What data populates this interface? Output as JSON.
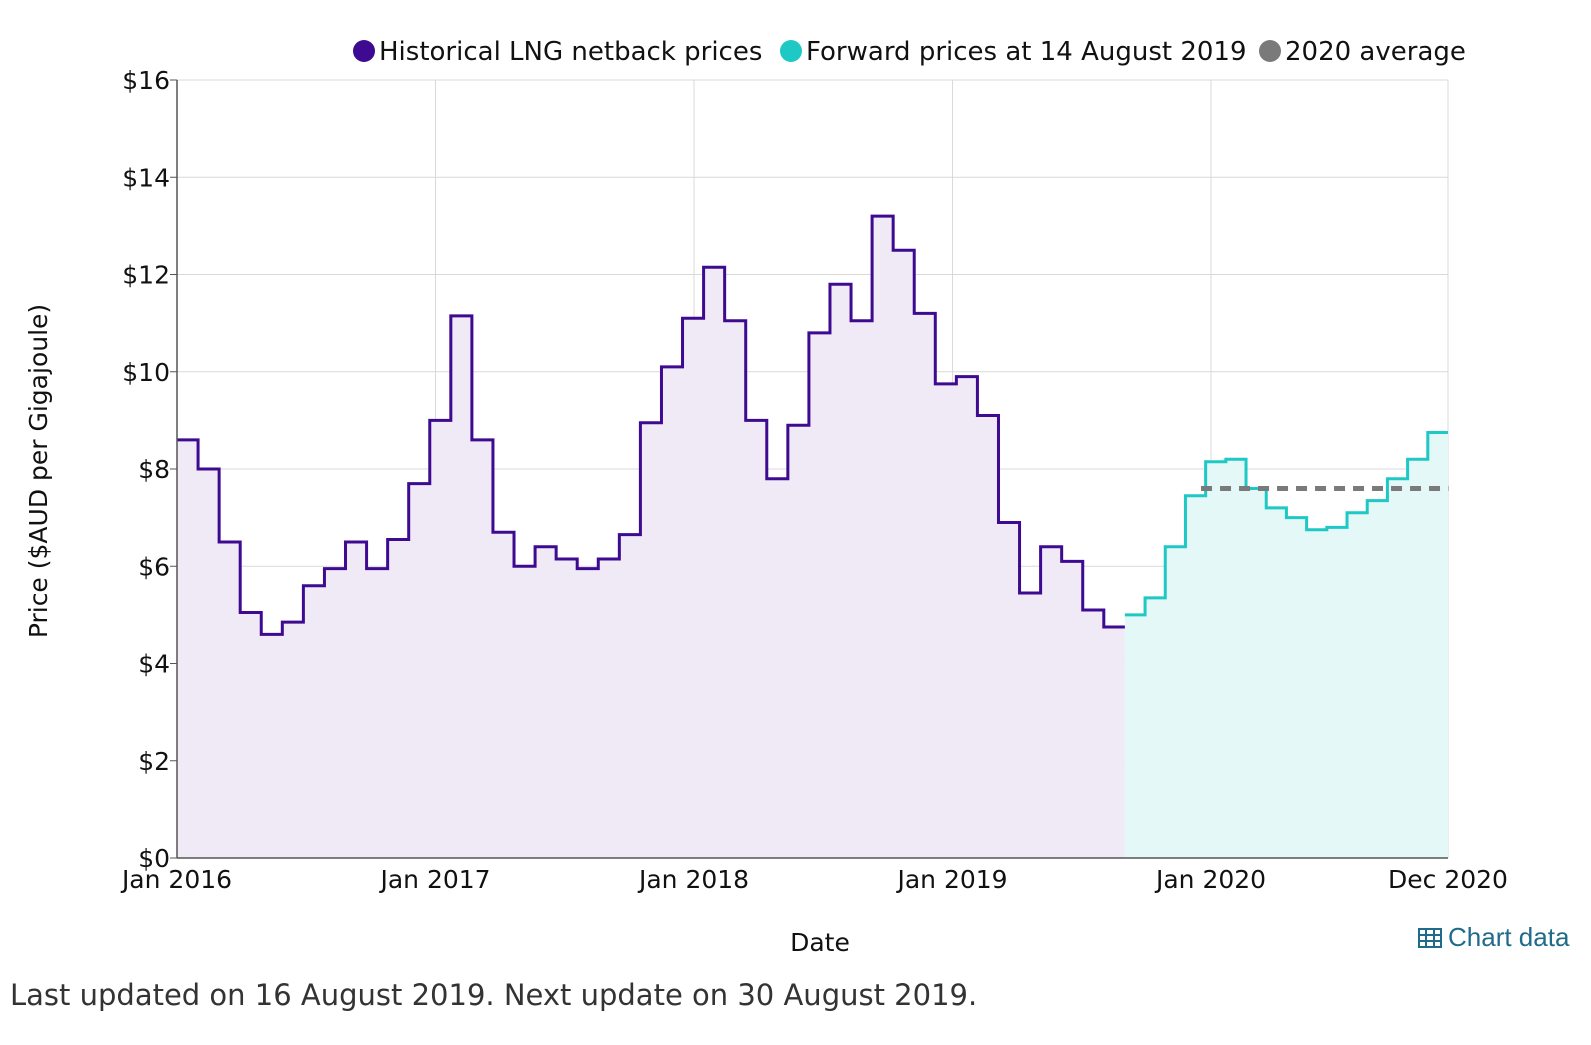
{
  "chart_data": {
    "type": "line",
    "step": true,
    "xlabel": "Date",
    "ylabel": "Price ($AUD per Gigajoule)",
    "ylim": [
      0,
      16
    ],
    "yticks": [
      "$0",
      "$2",
      "$4",
      "$6",
      "$8",
      "$10",
      "$12",
      "$14",
      "$16"
    ],
    "ytick_values": [
      0,
      2,
      4,
      6,
      8,
      10,
      12,
      14,
      16
    ],
    "xticks": [
      {
        "label": "Jan 2016",
        "month_index": 0
      },
      {
        "label": "Jan 2017",
        "month_index": 12
      },
      {
        "label": "Jan 2018",
        "month_index": 24
      },
      {
        "label": "Jan 2019",
        "month_index": 36
      },
      {
        "label": "Jan 2020",
        "month_index": 48
      },
      {
        "label": "Dec 2020",
        "month_index": 59
      }
    ],
    "grid": true,
    "legend_position": "top-right",
    "series": [
      {
        "name": "Historical LNG netback prices",
        "color": "#3d0a91",
        "fill": "#efeaf5",
        "start_month_index": 0,
        "values": [
          8.6,
          8.0,
          6.5,
          5.05,
          4.6,
          4.85,
          5.6,
          5.95,
          6.5,
          5.95,
          6.55,
          7.7,
          9.0,
          11.15,
          8.6,
          6.7,
          6.0,
          6.4,
          6.15,
          5.95,
          6.15,
          6.65,
          8.95,
          10.1,
          11.1,
          12.15,
          11.05,
          9.0,
          7.8,
          8.9,
          10.8,
          11.8,
          11.05,
          13.2,
          12.5,
          11.2,
          9.75,
          9.9,
          9.1,
          6.9,
          5.45,
          6.4,
          6.1,
          5.1,
          4.75
        ]
      },
      {
        "name": "Forward prices at 14 August 2019",
        "color": "#1ec8c4",
        "fill": "#e4f8f8",
        "start_month_index": 44,
        "values": [
          5.0,
          5.35,
          6.4,
          7.45,
          8.15,
          8.2,
          7.6,
          7.2,
          7.0,
          6.75,
          6.8,
          7.1,
          7.35,
          7.8,
          8.2,
          8.75
        ]
      },
      {
        "name": "2020 average",
        "color": "#7a7a7a",
        "start_month_index": 48,
        "end_month_index": 60,
        "value": 7.6,
        "dashed": true
      }
    ]
  },
  "chart_data_link": {
    "label": "Chart data",
    "icon": "table-icon"
  },
  "footer": {
    "note": "Last updated on 16 August 2019. Next update on 30 August 2019."
  }
}
